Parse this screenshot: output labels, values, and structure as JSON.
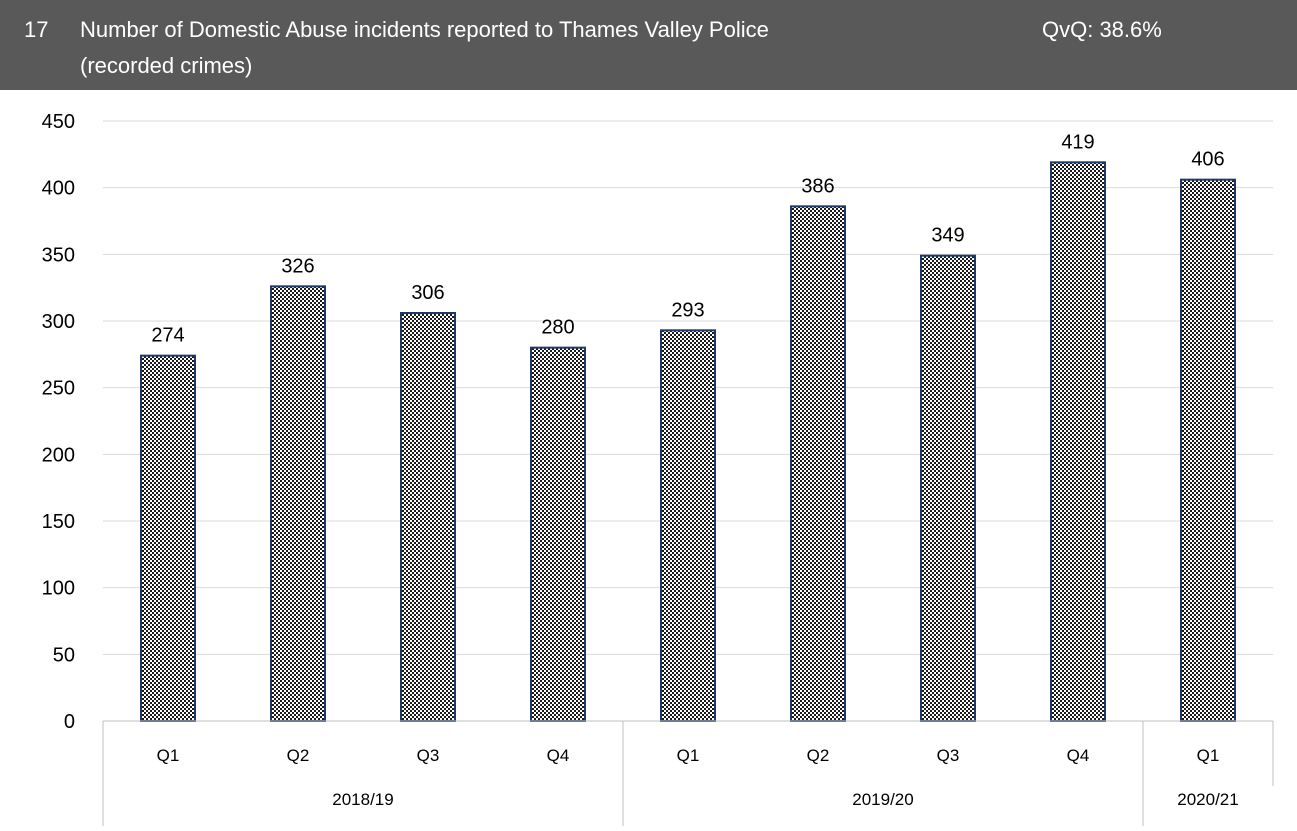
{
  "header": {
    "number": "17",
    "title_line1": "Number of Domestic Abuse incidents reported to Thames Valley Police",
    "title_line2": "(recorded crimes)",
    "qvq": "QvQ: 38.6%"
  },
  "colors": {
    "header_bg": "#595959",
    "bar_border": "#1f3864",
    "gridline": "#d9d9d9"
  },
  "chart_data": {
    "type": "bar",
    "categories": [
      "Q1",
      "Q2",
      "Q3",
      "Q4",
      "Q1",
      "Q2",
      "Q3",
      "Q4",
      "Q1"
    ],
    "groups": [
      {
        "label": "2018/19",
        "count": 4
      },
      {
        "label": "2019/20",
        "count": 4
      },
      {
        "label": "2020/21",
        "count": 1
      }
    ],
    "values": [
      274,
      326,
      306,
      280,
      293,
      386,
      349,
      419,
      406
    ],
    "data_labels": [
      "274",
      "326",
      "306",
      "280",
      "293",
      "386",
      "349",
      "419",
      "406"
    ],
    "yticks": [
      "0",
      "50",
      "100",
      "150",
      "200",
      "250",
      "300",
      "350",
      "400",
      "450"
    ],
    "ylim": [
      0,
      450
    ],
    "grid": true,
    "bar_fill": "checkered dark pattern"
  }
}
